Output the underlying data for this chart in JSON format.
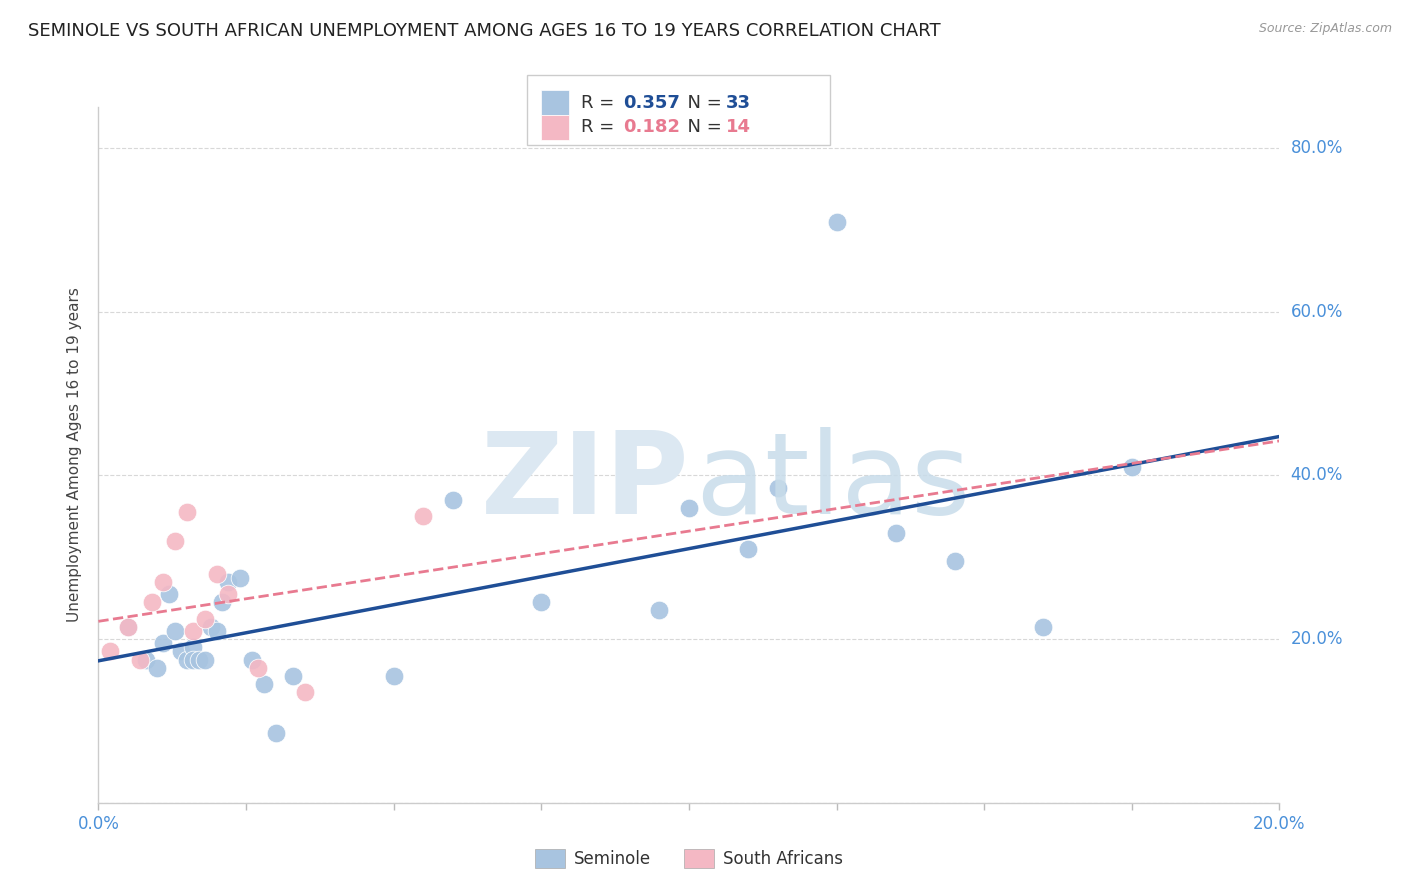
{
  "title": "SEMINOLE VS SOUTH AFRICAN UNEMPLOYMENT AMONG AGES 16 TO 19 YEARS CORRELATION CHART",
  "source": "Source: ZipAtlas.com",
  "ylabel": "Unemployment Among Ages 16 to 19 years",
  "xlim": [
    0.0,
    0.2
  ],
  "ylim": [
    0.0,
    0.85
  ],
  "x_ticks": [
    0.0,
    0.025,
    0.05,
    0.075,
    0.1,
    0.125,
    0.15,
    0.175,
    0.2
  ],
  "x_tick_labels": [
    "0.0%",
    "",
    "",
    "",
    "",
    "",
    "",
    "",
    "20.0%"
  ],
  "y_ticks": [
    0.0,
    0.2,
    0.4,
    0.6,
    0.8
  ],
  "y_tick_labels_right": [
    "",
    "20.0%",
    "40.0%",
    "60.0%",
    "80.0%"
  ],
  "seminole_R": 0.357,
  "seminole_N": 33,
  "sa_R": 0.182,
  "sa_N": 14,
  "seminole_color": "#a8c4e0",
  "sa_color": "#f4b8c4",
  "line_seminole_color": "#1f4e96",
  "line_sa_color": "#e87a90",
  "background_color": "#ffffff",
  "seminole_x": [
    0.005,
    0.008,
    0.01,
    0.011,
    0.012,
    0.013,
    0.014,
    0.015,
    0.016,
    0.016,
    0.017,
    0.018,
    0.019,
    0.02,
    0.021,
    0.022,
    0.024,
    0.026,
    0.028,
    0.03,
    0.033,
    0.05,
    0.06,
    0.075,
    0.095,
    0.1,
    0.11,
    0.115,
    0.125,
    0.135,
    0.145,
    0.16,
    0.175
  ],
  "seminole_y": [
    0.215,
    0.175,
    0.165,
    0.195,
    0.255,
    0.21,
    0.185,
    0.175,
    0.19,
    0.175,
    0.175,
    0.175,
    0.215,
    0.21,
    0.245,
    0.27,
    0.275,
    0.175,
    0.145,
    0.085,
    0.155,
    0.155,
    0.37,
    0.245,
    0.235,
    0.36,
    0.31,
    0.385,
    0.71,
    0.33,
    0.295,
    0.215,
    0.41
  ],
  "sa_x": [
    0.002,
    0.005,
    0.007,
    0.009,
    0.011,
    0.013,
    0.015,
    0.016,
    0.018,
    0.02,
    0.022,
    0.027,
    0.035,
    0.055
  ],
  "sa_y": [
    0.185,
    0.215,
    0.175,
    0.245,
    0.27,
    0.32,
    0.355,
    0.21,
    0.225,
    0.28,
    0.255,
    0.165,
    0.135,
    0.35
  ],
  "grid_color": "#d8d8d8",
  "tick_color": "#4a90d9",
  "title_fontsize": 13,
  "label_fontsize": 11,
  "legend_fontsize": 13
}
